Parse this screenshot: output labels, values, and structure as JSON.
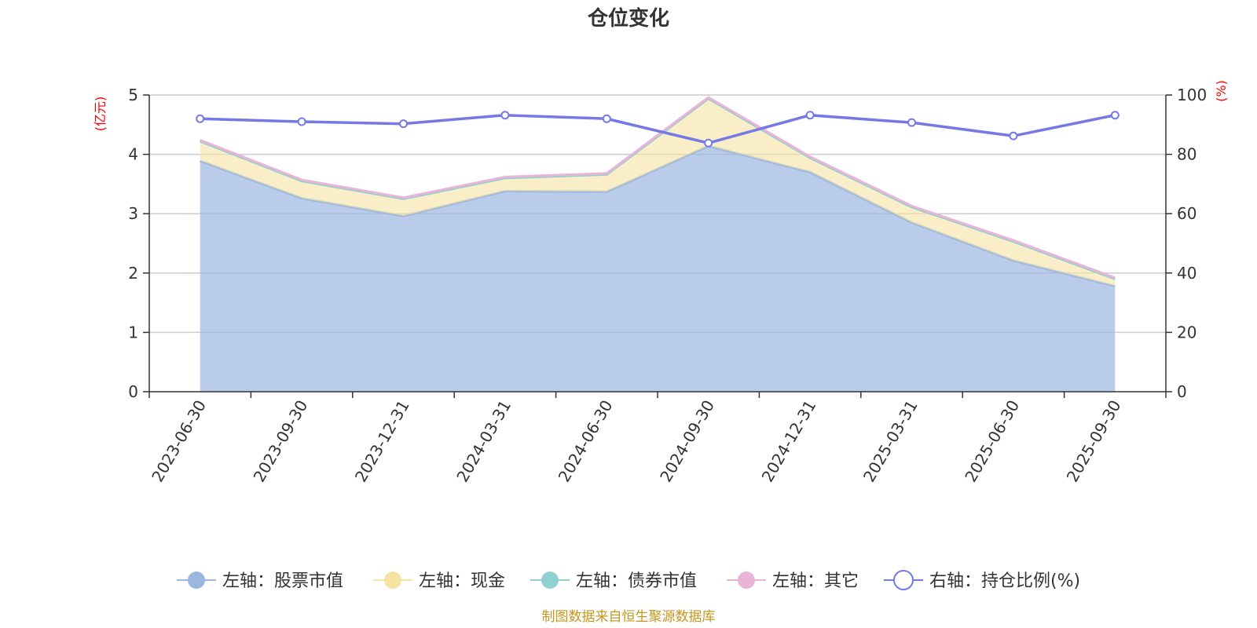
{
  "chart_data": {
    "type": "area",
    "title": "仓位变化",
    "categories": [
      "2023-06-30",
      "2023-09-30",
      "2023-12-31",
      "2024-03-31",
      "2024-06-30",
      "2024-09-30",
      "2024-12-31",
      "2025-03-31",
      "2025-06-30",
      "2025-09-30"
    ],
    "y_left": {
      "unit": "(亿元)",
      "min": 0,
      "max": 5,
      "ticks": [
        "0",
        "1",
        "2",
        "3",
        "4",
        "5"
      ]
    },
    "y_right": {
      "unit": "(%)",
      "min": 0,
      "max": 100,
      "ticks": [
        "0",
        "20",
        "40",
        "60",
        "80",
        "100"
      ]
    },
    "grid": true,
    "legend_position": "bottom",
    "series": [
      {
        "name": "左轴：股票市值",
        "axis": "left",
        "stack": true,
        "color": "#9bb7e0",
        "values": [
          3.89,
          3.26,
          2.96,
          3.38,
          3.37,
          4.14,
          3.7,
          2.85,
          2.21,
          1.78
        ]
      },
      {
        "name": "左轴：现金",
        "axis": "left",
        "stack": true,
        "color": "#f5e3a3",
        "values": [
          0.33,
          0.29,
          0.29,
          0.22,
          0.29,
          0.8,
          0.24,
          0.26,
          0.32,
          0.12
        ]
      },
      {
        "name": "左轴：债券市值",
        "axis": "left",
        "stack": true,
        "color": "#8fd0d0",
        "values": [
          0,
          0,
          0,
          0,
          0,
          0,
          0,
          0,
          0,
          0
        ]
      },
      {
        "name": "左轴：其它",
        "axis": "left",
        "stack": true,
        "color": "#e8b4d8",
        "values": [
          0.02,
          0.02,
          0.02,
          0.02,
          0.02,
          0.02,
          0.02,
          0.02,
          0.02,
          0.02
        ]
      },
      {
        "name": "右轴：持仓比例(%)",
        "axis": "right",
        "stack": false,
        "color": "#7479e6",
        "values": [
          92.0,
          91.0,
          90.3,
          93.2,
          92.0,
          83.8,
          93.2,
          90.7,
          86.2,
          93.2
        ]
      }
    ],
    "source": "制图数据来自恒生聚源数据库"
  }
}
